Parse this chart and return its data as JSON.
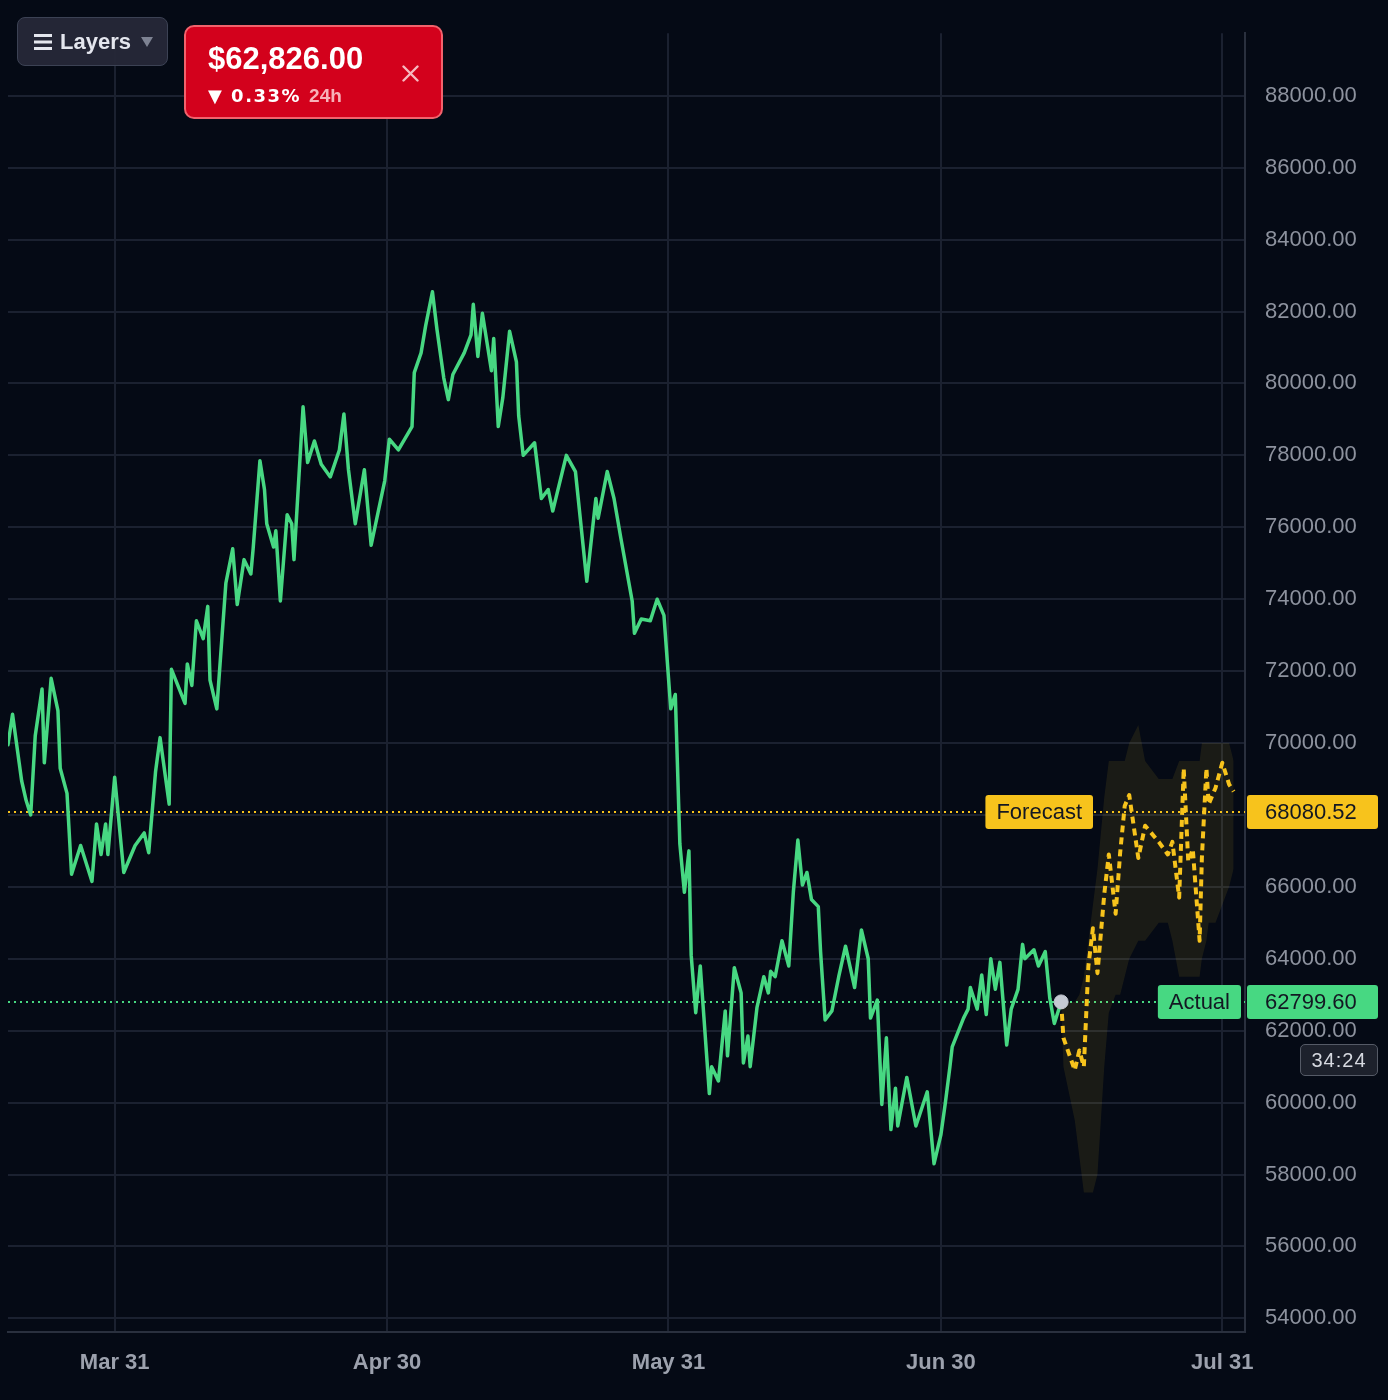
{
  "chart_data": {
    "type": "line",
    "xlim": [
      "--03-19T06:00",
      "--08-02T12:00"
    ],
    "xticks": [
      {
        "value": "--03-31",
        "label": "Mar 31"
      },
      {
        "value": "--04-30",
        "label": "Apr 30"
      },
      {
        "value": "--05-31",
        "label": "May 31"
      },
      {
        "value": "--06-30",
        "label": "Jun 30"
      },
      {
        "value": "--07-31",
        "label": "Jul 31"
      }
    ],
    "ylim": [
      53620,
      89740
    ],
    "yticks": [
      {
        "value": 54000,
        "label": "54000.00"
      },
      {
        "value": 56000,
        "label": "56000.00"
      },
      {
        "value": 58000,
        "label": "58000.00"
      },
      {
        "value": 60000,
        "label": "60000.00"
      },
      {
        "value": 62000,
        "label": "62000.00"
      },
      {
        "value": 64000,
        "label": "64000.00"
      },
      {
        "value": 66000,
        "label": "66000.00"
      },
      {
        "value": 68000,
        "label": null
      },
      {
        "value": 70000,
        "label": "70000.00"
      },
      {
        "value": 72000,
        "label": "72000.00"
      },
      {
        "value": 74000,
        "label": "74000.00"
      },
      {
        "value": 76000,
        "label": "76000.00"
      },
      {
        "value": 78000,
        "label": "78000.00"
      },
      {
        "value": 80000,
        "label": "80000.00"
      },
      {
        "value": 82000,
        "label": "82000.00"
      },
      {
        "value": 84000,
        "label": "84000.00"
      },
      {
        "value": 86000,
        "label": "86000.00"
      },
      {
        "value": 88000,
        "label": "88000.00"
      }
    ],
    "grid": true,
    "legend": false,
    "marker": "none",
    "series": [
      {
        "color": "#47d882",
        "line_style": "solid",
        "x": [
          "--03-19T06:00",
          "--03-19T18:00",
          "--03-20T18:00",
          "--03-21T06:00",
          "--03-21T18:00",
          "--03-22T06:00",
          "--03-23T00:00",
          "--03-23T06:00",
          "--03-24T00:00",
          "--03-24T18:00",
          "--03-25T00:00",
          "--03-25T18:00",
          "--03-26T06:00",
          "--03-27T06:00",
          "--03-28T12:00",
          "--03-29T00:00",
          "--03-29T12:00",
          "--03-30T00:00",
          "--03-30T06:00",
          "--03-31T00:00",
          "--04-01T00:00",
          "--04-02T06:00",
          "--04-03T06:00",
          "--04-03T18:00",
          "--04-04T12:00",
          "--04-05T00:00",
          "--04-06T00:00",
          "--04-06T06:00",
          "--04-07T18:00",
          "--04-08T00:00",
          "--04-08T12:00",
          "--04-09T00:00",
          "--04-09T18:00",
          "--04-10T06:00",
          "--04-10T12:00",
          "--04-11T06:00",
          "--04-12T06:00",
          "--04-13T00:00",
          "--04-13T12:00",
          "--04-14T06:00",
          "--04-15T00:00",
          "--04-15T06:00",
          "--04-16T00:00",
          "--04-16T12:00",
          "--04-16T18:00",
          "--04-17T12:00",
          "--04-17T18:00",
          "--04-18T06:00",
          "--04-19T00:00",
          "--04-19T12:00",
          "--04-19T18:00",
          "--04-20T18:00",
          "--04-21T06:00",
          "--04-22T00:00",
          "--04-22T18:00",
          "--04-23T18:00",
          "--04-24T18:00",
          "--04-25T06:00",
          "--04-25T18:00",
          "--04-26T12:00",
          "--04-27T12:00",
          "--04-28T06:00",
          "--04-29T18:00",
          "--04-30T06:00",
          "--05-01T06:00",
          "--05-02T18:00",
          "--05-03T00:00",
          "--05-03T18:00",
          "--05-04T06:00",
          "--05-05T00:00",
          "--05-05T12:00",
          "--05-06T06:00",
          "--05-06T18:00",
          "--05-07T06:00",
          "--05-08T12:00",
          "--05-09T06:00",
          "--05-09T12:00",
          "--05-10T00:00",
          "--05-10T12:00",
          "--05-11T12:00",
          "--05-11T18:00",
          "--05-12T06:00",
          "--05-12T18:00",
          "--05-13T12:00",
          "--05-14T06:00",
          "--05-14T12:00",
          "--05-15T00:00",
          "--05-16T06:00",
          "--05-17T00:00",
          "--05-17T18:00",
          "--05-18T06:00",
          "--05-19T18:00",
          "--05-20T18:00",
          "--05-22T00:00",
          "--05-23T00:00",
          "--05-23T06:00",
          "--05-24T06:00",
          "--05-25T00:00",
          "--05-25T18:00",
          "--05-27T00:00",
          "--05-27T06:00",
          "--05-28T00:00",
          "--05-29T00:00",
          "--05-29T18:00",
          "--05-30T12:00",
          "--05-31T06:00",
          "--05-31T18:00",
          "--06-01T06:00",
          "--06-01T18:00",
          "--06-02T06:00",
          "--06-02T12:00",
          "--06-03T00:00",
          "--06-03T12:00",
          "--06-04T12:00",
          "--06-04T18:00",
          "--06-05T12:00",
          "--06-06T06:00",
          "--06-06T12:00",
          "--06-07T06:00",
          "--06-08T00:00",
          "--06-08T06:00",
          "--06-08T18:00",
          "--06-09T00:00",
          "--06-09T18:00",
          "--06-10T12:00",
          "--06-11T00:00",
          "--06-11T06:00",
          "--06-11T18:00",
          "--06-12T12:00",
          "--06-13T06:00",
          "--06-13T18:00",
          "--06-14T06:00",
          "--06-14T18:00",
          "--06-15T06:00",
          "--06-15T18:00",
          "--06-16T12:00",
          "--06-16T18:00",
          "--06-17T06:00",
          "--06-18T00:00",
          "--06-18T18:00",
          "--06-19T12:00",
          "--06-20T12:00",
          "--06-21T06:00",
          "--06-22T00:00",
          "--06-22T06:00",
          "--06-23T00:00",
          "--06-23T12:00",
          "--06-24T00:00",
          "--06-24T12:00",
          "--06-25T00:00",
          "--06-25T06:00",
          "--06-26T06:00",
          "--06-27T06:00",
          "--06-28T12:00",
          "--06-29T06:00",
          "--06-30T00:00",
          "--06-30T12:00",
          "--07-01T00:00",
          "--07-01T06:00",
          "--07-02T12:00",
          "--07-03T00:00",
          "--07-03T06:00",
          "--07-04T00:00",
          "--07-04T12:00",
          "--07-05T00:00",
          "--07-05T12:00",
          "--07-06T00:00",
          "--07-06T12:00",
          "--07-07T06:00",
          "--07-07T18:00",
          "--07-08T12:00",
          "--07-09T00:00",
          "--07-09T06:00",
          "--07-10T06:00",
          "--07-10T18:00",
          "--07-11T12:00",
          "--07-12T00:00",
          "--07-12T12:00",
          "--07-13T06:00"
        ],
        "values": [
          69950,
          70800,
          68950,
          68400,
          68000,
          70200,
          71500,
          69450,
          71800,
          70900,
          69300,
          68600,
          66350,
          67150,
          66150,
          67750,
          66900,
          67750,
          66900,
          69050,
          66400,
          67150,
          67500,
          66950,
          69200,
          70150,
          68300,
          72050,
          71100,
          72200,
          71600,
          73400,
          72900,
          73800,
          71750,
          70950,
          74450,
          75400,
          73850,
          75100,
          74700,
          75400,
          77850,
          77050,
          76100,
          75450,
          75900,
          73950,
          76350,
          76100,
          75100,
          79350,
          77800,
          78400,
          77750,
          77400,
          78150,
          79150,
          77600,
          76100,
          77600,
          75500,
          77300,
          78450,
          78150,
          78800,
          80300,
          80850,
          81600,
          82550,
          81500,
          80150,
          79550,
          80250,
          80850,
          81350,
          82200,
          80750,
          81950,
          80350,
          81250,
          78800,
          79600,
          81450,
          80600,
          79100,
          78000,
          78350,
          76800,
          77050,
          76450,
          78000,
          77550,
          74500,
          76800,
          76250,
          77550,
          76800,
          75700,
          73950,
          73050,
          73450,
          73400,
          74000,
          73550,
          70950,
          71350,
          67200,
          65850,
          67000,
          64100,
          62500,
          63800,
          60250,
          61000,
          60600,
          62550,
          61300,
          63750,
          63050,
          61100,
          61850,
          61000,
          62650,
          63500,
          63050,
          63650,
          63500,
          64500,
          63800,
          65850,
          67300,
          66050,
          66400,
          65650,
          65450,
          64200,
          62300,
          62550,
          63500,
          64350,
          63200,
          64800,
          64000,
          62350,
          62850,
          59950,
          61800,
          59250,
          60400,
          59350,
          60700,
          59350,
          60300,
          58300,
          59100,
          60000,
          61000,
          61550,
          62350,
          62600,
          63200,
          62600,
          63550,
          62450,
          64000,
          63150,
          63900,
          61600,
          62600,
          63150,
          64400,
          64000,
          64250,
          63800,
          64200,
          62900,
          62200,
          62800
        ]
      },
      {
        "color": "#f7c31c",
        "line_style": "dashed",
        "x": [
          "--07-13T06:00",
          "--07-13T12:00",
          "--07-14T18:00",
          "--07-15T06:00",
          "--07-15T18:00",
          "--07-16T06:00",
          "--07-16T18:00",
          "--07-17T06:00",
          "--07-18T00:00",
          "--07-18T12:00",
          "--07-19T06:00",
          "--07-19T18:00",
          "--07-20T06:00",
          "--07-20T18:00",
          "--07-21T18:00",
          "--07-22T12:00",
          "--07-24T00:00",
          "--07-25T00:00",
          "--07-25T12:00",
          "--07-26T06:00",
          "--07-26T18:00",
          "--07-27T06:00",
          "--07-27T18:00",
          "--07-28T12:00",
          "--07-28T18:00",
          "--07-29T06:00",
          "--07-29T12:00",
          "--07-30T06:00",
          "--07-31T00:00",
          "--07-31T18:00",
          "--08-01T06:00"
        ],
        "values": [
          62800,
          61800,
          60900,
          61450,
          61000,
          63800,
          64850,
          63600,
          65800,
          66900,
          65250,
          66950,
          68250,
          68550,
          66800,
          67700,
          67250,
          66900,
          67250,
          65700,
          69300,
          66700,
          67050,
          64500,
          66800,
          69300,
          68300,
          68750,
          69450,
          68850,
          68650
        ],
        "lower": [
          62800,
          61000,
          59500,
          58500,
          57500,
          57500,
          57500,
          58000,
          61000,
          62500,
          63000,
          63000,
          63500,
          64000,
          64500,
          64500,
          65000,
          65000,
          64500,
          63500,
          63500,
          63500,
          63500,
          63500,
          64000,
          64500,
          65000,
          65000,
          65500,
          66000,
          66500
        ],
        "upper": [
          62800,
          62800,
          62800,
          63000,
          63500,
          64500,
          65500,
          66500,
          68500,
          69500,
          69500,
          69500,
          69500,
          70000,
          70500,
          69500,
          69000,
          69000,
          69000,
          69500,
          69500,
          69500,
          69500,
          69500,
          70000,
          70000,
          70000,
          70000,
          70000,
          70000,
          69500
        ]
      },
      {
        "type": "scatter",
        "color": "#c5c9d3",
        "marker": "circle",
        "x": [
          "--07-13T06:00"
        ],
        "values": [
          62800
        ]
      }
    ],
    "ref_lines": [
      {
        "axis": "y",
        "value": 68080.52,
        "label": "Forecast",
        "color": "#f7c31c",
        "line_style": "dotted"
      },
      {
        "axis": "y",
        "value": 62799.6,
        "label": "Actual",
        "color": "#47d882",
        "line_style": "dotted"
      }
    ],
    "annotations": [
      "Layers",
      "$62,826.00",
      "▼ 0.33%",
      "24h",
      "34:24",
      "68080.52",
      "62799.60"
    ]
  }
}
